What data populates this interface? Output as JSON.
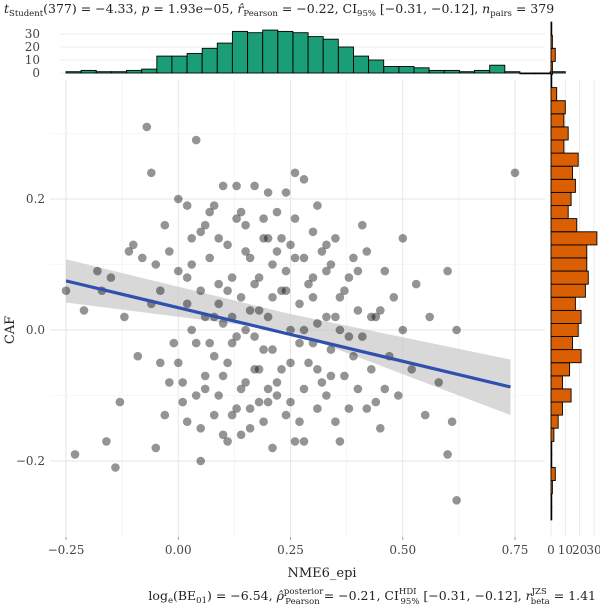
{
  "chart_data": {
    "type": "scatter",
    "subtitle": {
      "t": "t",
      "t_sub": "Student",
      "t_rest": "(377) = −4.33, ",
      "p": "p",
      "p_rest": " = 1.93e−05, ",
      "r": "r̂",
      "r_sub": "Pearson",
      "r_rest": " = −0.22, CI",
      "ci_sub": "95%",
      "ci_rest": " [−0.31, −0.12], ",
      "n": "n",
      "n_sub": "pairs",
      "n_rest": " = 379"
    },
    "caption": {
      "a": "log",
      "a_sub": "e",
      "b": "(BE",
      "b_sub": "01",
      "c": ") = −6.54, ",
      "rho": "ρ̂",
      "rho_sup": "posterior",
      "rho_sub": "Pearson",
      "d": " = −0.21, CI",
      "ci_sup": "HDI",
      "ci_sub": "95%",
      "e": " [−0.31, −0.12], ",
      "rb": "r",
      "rb_sup": "JZS",
      "rb_sub": "beta",
      "f": " = 1.41"
    },
    "xlabel": "NME6_epi",
    "ylabel": "CAF",
    "xlim": [
      -0.29,
      0.8
    ],
    "ylim": [
      -0.3,
      0.35
    ],
    "x_ticks": [
      -0.25,
      0.0,
      0.25,
      0.5,
      0.75
    ],
    "x_tick_labels": [
      "−0.25",
      "0.00",
      "0.25",
      "0.50",
      "0.75"
    ],
    "y_ticks": [
      -0.2,
      0.0,
      0.2
    ],
    "y_tick_labels": [
      "−0.2",
      "0.0",
      "0.2"
    ],
    "regression": {
      "x": [
        -0.25,
        0.74
      ],
      "y": [
        0.075,
        -0.087
      ],
      "ci_start": [
        0.042,
        0.108
      ],
      "ci_mid": [
        -0.001,
        0.025
      ],
      "ci_end": [
        -0.13,
        -0.045
      ]
    },
    "top_hist": {
      "y_ticks": [
        0,
        10,
        20,
        30
      ],
      "y_tick_labels": [
        "0",
        "10",
        "20",
        "30"
      ],
      "ymax": 35,
      "bin_start": -0.25,
      "bin_width": 0.0337,
      "counts": [
        1,
        2,
        1,
        1,
        2,
        3,
        13,
        13,
        15,
        19,
        23,
        32,
        31,
        33,
        32,
        31,
        28,
        26,
        20,
        13,
        10,
        5,
        5,
        4,
        2,
        2,
        1,
        2,
        6,
        1,
        0,
        0,
        1
      ]
    },
    "right_hist": {
      "x_ticks": [
        0,
        10,
        20,
        30
      ],
      "x_tick_labels": [
        "0",
        "10",
        "20",
        "30"
      ],
      "xmax": 33,
      "bin_start": -0.29,
      "bin_width": 0.02,
      "counts": [
        0,
        0,
        1,
        3,
        0,
        0,
        2,
        5,
        8,
        14,
        8,
        13,
        21,
        15,
        19,
        21,
        17,
        24,
        26,
        25,
        25,
        32,
        18,
        12,
        14,
        17,
        15,
        19,
        9,
        12,
        9,
        10,
        4,
        0,
        1,
        3,
        1,
        0
      ]
    },
    "points": [
      [
        -0.25,
        0.06
      ],
      [
        -0.23,
        -0.19
      ],
      [
        -0.21,
        0.03
      ],
      [
        -0.18,
        0.09
      ],
      [
        -0.17,
        0.06
      ],
      [
        -0.16,
        -0.17
      ],
      [
        -0.15,
        0.08
      ],
      [
        -0.14,
        -0.21
      ],
      [
        -0.13,
        -0.11
      ],
      [
        -0.12,
        0.02
      ],
      [
        -0.11,
        0.12
      ],
      [
        -0.1,
        0.13
      ],
      [
        -0.09,
        -0.04
      ],
      [
        -0.08,
        0.11
      ],
      [
        -0.07,
        0.31
      ],
      [
        -0.06,
        0.24
      ],
      [
        -0.05,
        -0.18
      ],
      [
        -0.05,
        0.1
      ],
      [
        -0.04,
        -0.05
      ],
      [
        -0.03,
        0.16
      ],
      [
        -0.03,
        -0.13
      ],
      [
        -0.02,
        0.12
      ],
      [
        -0.01,
        -0.02
      ],
      [
        0.0,
        0.09
      ],
      [
        0.0,
        0.2
      ],
      [
        0.01,
        -0.08
      ],
      [
        0.02,
        -0.14
      ],
      [
        0.02,
        0.04
      ],
      [
        0.03,
        0.0
      ],
      [
        0.03,
        0.1
      ],
      [
        0.04,
        -0.02
      ],
      [
        0.04,
        0.29
      ],
      [
        0.05,
        0.15
      ],
      [
        0.05,
        -0.2
      ],
      [
        0.06,
        0.02
      ],
      [
        0.06,
        -0.07
      ],
      [
        0.07,
        0.11
      ],
      [
        0.08,
        -0.04
      ],
      [
        0.08,
        0.19
      ],
      [
        0.09,
        0.07
      ],
      [
        0.09,
        -0.1
      ],
      [
        0.1,
        0.01
      ],
      [
        0.1,
        -0.16
      ],
      [
        0.11,
        0.13
      ],
      [
        0.11,
        -0.05
      ],
      [
        0.12,
        0.08
      ],
      [
        0.12,
        -0.02
      ],
      [
        0.13,
        0.17
      ],
      [
        0.13,
        -0.12
      ],
      [
        0.14,
        0.05
      ],
      [
        0.15,
        -0.08
      ],
      [
        0.15,
        0.12
      ],
      [
        0.16,
        0.03
      ],
      [
        0.16,
        -0.15
      ],
      [
        0.17,
        0.22
      ],
      [
        0.17,
        -0.01
      ],
      [
        0.18,
        0.08
      ],
      [
        0.18,
        -0.06
      ],
      [
        0.19,
        0.14
      ],
      [
        0.2,
        0.02
      ],
      [
        0.2,
        -0.11
      ],
      [
        0.21,
        0.1
      ],
      [
        0.21,
        -0.03
      ],
      [
        0.22,
        0.18
      ],
      [
        0.22,
        -0.08
      ],
      [
        0.23,
        0.06
      ],
      [
        0.24,
        -0.13
      ],
      [
        0.24,
        0.21
      ],
      [
        0.25,
        0.0
      ],
      [
        0.25,
        -0.05
      ],
      [
        0.26,
        0.11
      ],
      [
        0.26,
        -0.17
      ],
      [
        0.27,
        0.04
      ],
      [
        0.28,
        0.23
      ],
      [
        0.28,
        -0.09
      ],
      [
        0.29,
        0.07
      ],
      [
        0.3,
        -0.02
      ],
      [
        0.3,
        0.15
      ],
      [
        0.31,
        -0.06
      ],
      [
        0.31,
        0.01
      ],
      [
        0.32,
        0.12
      ],
      [
        0.33,
        -0.1
      ],
      [
        0.33,
        0.09
      ],
      [
        0.34,
        -0.03
      ],
      [
        0.35,
        0.14
      ],
      [
        0.35,
        -0.14
      ],
      [
        0.36,
        0.05
      ],
      [
        0.37,
        -0.07
      ],
      [
        0.38,
        0.08
      ],
      [
        0.38,
        -0.01
      ],
      [
        0.39,
        0.11
      ],
      [
        0.4,
        -0.09
      ],
      [
        0.4,
        0.03
      ],
      [
        0.41,
        0.16
      ],
      [
        0.42,
        -0.12
      ],
      [
        0.43,
        -0.06
      ],
      [
        0.44,
        0.02
      ],
      [
        0.45,
        -0.15
      ],
      [
        0.46,
        0.09
      ],
      [
        0.47,
        -0.04
      ],
      [
        0.48,
        0.05
      ],
      [
        0.49,
        -0.1
      ],
      [
        0.5,
        0.0
      ],
      [
        0.5,
        0.14
      ],
      [
        0.52,
        -0.06
      ],
      [
        0.53,
        0.07
      ],
      [
        0.55,
        -0.13
      ],
      [
        0.56,
        0.02
      ],
      [
        0.58,
        -0.08
      ],
      [
        0.6,
        0.09
      ],
      [
        0.6,
        -0.19
      ],
      [
        0.61,
        -0.14
      ],
      [
        0.62,
        -0.26
      ],
      [
        0.62,
        0.0
      ],
      [
        0.75,
        0.24
      ],
      [
        0.01,
        -0.11
      ],
      [
        0.12,
        0.02
      ],
      [
        0.19,
        -0.14
      ],
      [
        0.28,
        0.11
      ],
      [
        0.36,
        -0.17
      ],
      [
        0.43,
        0.02
      ],
      [
        0.14,
        -0.09
      ],
      [
        0.23,
        0.14
      ],
      [
        0.07,
        -0.02
      ],
      [
        0.31,
        -0.12
      ],
      [
        0.02,
        0.19
      ],
      [
        0.24,
        0.06
      ],
      [
        0.17,
        -0.06
      ],
      [
        0.35,
        0.02
      ],
      [
        0.09,
        0.14
      ],
      [
        0.27,
        -0.02
      ],
      [
        0.2,
        0.21
      ],
      [
        0.11,
        -0.17
      ],
      [
        0.33,
        0.13
      ],
      [
        0.05,
        0.06
      ],
      [
        0.15,
        0.0
      ],
      [
        0.22,
        -0.1
      ],
      [
        0.29,
        -0.05
      ],
      [
        0.4,
        0.09
      ],
      [
        0.46,
        -0.09
      ],
      [
        0.13,
        0.22
      ],
      [
        0.04,
        -0.1
      ],
      [
        0.18,
        0.03
      ],
      [
        0.26,
        0.17
      ],
      [
        0.32,
        -0.08
      ],
      [
        0.37,
        0.06
      ],
      [
        0.08,
        0.02
      ],
      [
        0.21,
        -0.18
      ],
      [
        0.16,
        0.11
      ],
      [
        0.25,
        -0.11
      ],
      [
        -0.02,
        -0.08
      ],
      [
        0.1,
        0.22
      ],
      [
        0.03,
        0.14
      ],
      [
        0.34,
        0.1
      ],
      [
        0.19,
        -0.03
      ],
      [
        0.12,
        -0.13
      ],
      [
        0.28,
        0.0
      ],
      [
        0.06,
        0.16
      ],
      [
        0.42,
        0.12
      ],
      [
        0.14,
        0.18
      ],
      [
        0.23,
        -0.06
      ],
      [
        0.3,
        0.05
      ],
      [
        -0.06,
        0.04
      ],
      [
        0.17,
        0.07
      ],
      [
        0.39,
        -0.04
      ],
      [
        0.08,
        -0.13
      ],
      [
        0.26,
        0.24
      ],
      [
        0.2,
        -0.09
      ],
      [
        0.11,
        0.06
      ],
      [
        0.36,
        0.0
      ],
      [
        0.44,
        -0.11
      ],
      [
        0.0,
        -0.05
      ],
      [
        0.18,
        -0.11
      ],
      [
        0.24,
        0.09
      ],
      [
        0.31,
        0.19
      ],
      [
        0.15,
        0.16
      ],
      [
        0.05,
        -0.15
      ],
      [
        0.27,
        -0.14
      ],
      [
        0.34,
        -0.07
      ],
      [
        0.09,
        0.04
      ],
      [
        0.21,
        0.05
      ],
      [
        0.13,
        -0.01
      ],
      [
        0.41,
        -0.01
      ],
      [
        0.02,
        0.08
      ],
      [
        0.28,
        -0.17
      ],
      [
        0.16,
        -0.12
      ],
      [
        0.25,
        0.13
      ],
      [
        0.07,
        0.18
      ],
      [
        0.33,
        0.02
      ],
      [
        0.19,
        0.17
      ],
      [
        0.1,
        -0.07
      ],
      [
        0.38,
        -0.12
      ],
      [
        -0.04,
        0.06
      ],
      [
        0.22,
        0.12
      ],
      [
        0.14,
        -0.16
      ],
      [
        0.3,
        0.08
      ],
      [
        0.06,
        -0.09
      ],
      [
        0.45,
        0.03
      ],
      [
        0.2,
        0.14
      ]
    ]
  }
}
